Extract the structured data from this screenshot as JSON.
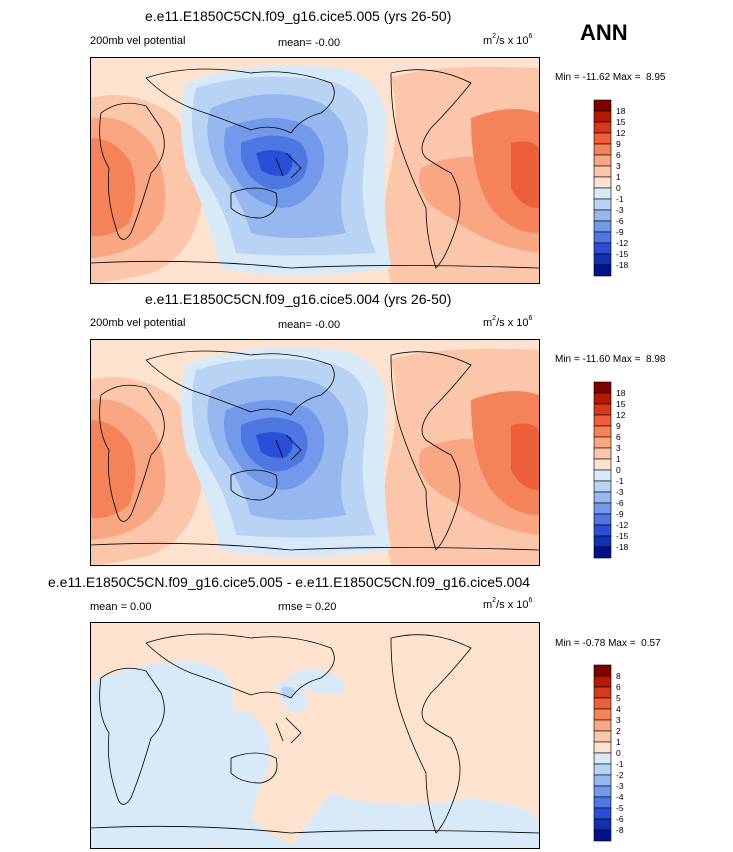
{
  "season": "ANN",
  "panels": [
    {
      "title": "e.e11.E1850C5CN.f09_g16.cice5.005 (yrs 26-50)",
      "left_label": "200mb vel potential",
      "stat_label": "mean=",
      "stat_value": "-0.00",
      "units_prefix": "m",
      "units_exp": "2",
      "units_mid": "/s x 10",
      "units_exp2": "6",
      "min_label": "Min =",
      "min_value": "-11.62",
      "max_label": "Max =",
      "max_value": "8.95",
      "colorbar": {
        "labels": [
          "18",
          "15",
          "12",
          "9",
          "6",
          "3",
          "1",
          "0",
          "-1",
          "-3",
          "-6",
          "-9",
          "-12",
          "-15",
          "-18"
        ]
      }
    },
    {
      "title": "e.e11.E1850C5CN.f09_g16.cice5.004 (yrs 26-50)",
      "left_label": "200mb vel potential",
      "stat_label": "mean=",
      "stat_value": "-0.00",
      "units_prefix": "m",
      "units_exp": "2",
      "units_mid": "/s x 10",
      "units_exp2": "6",
      "min_label": "Min =",
      "min_value": "-11.60",
      "max_label": "Max =",
      "max_value": "8.98",
      "colorbar": {
        "labels": [
          "18",
          "15",
          "12",
          "9",
          "6",
          "3",
          "1",
          "0",
          "-1",
          "-3",
          "-6",
          "-9",
          "-12",
          "-15",
          "-18"
        ]
      }
    },
    {
      "title": "e.e11.E1850C5CN.f09_g16.cice5.005 - e.e11.E1850C5CN.f09_g16.cice5.004",
      "left_label": "mean =   0.00",
      "stat_label": "rmse =",
      "stat_value": "0.20",
      "units_prefix": "m",
      "units_exp": "2",
      "units_mid": "/s x 10",
      "units_exp2": "6",
      "min_label": "Min =",
      "min_value": "-0.78",
      "max_label": "Max =",
      "max_value": "0.57",
      "colorbar": {
        "labels": [
          "8",
          "6",
          "5",
          "4",
          "3",
          "2",
          "1",
          "0",
          "-1",
          "-2",
          "-3",
          "-4",
          "-5",
          "-6",
          "-8"
        ]
      }
    }
  ],
  "colors": {
    "levels": [
      "#7f0000",
      "#b41a00",
      "#d8381a",
      "#ec5f3a",
      "#f5835a",
      "#f9a683",
      "#fcc6aa",
      "#fde3cf",
      "#d8e9f8",
      "#b8d3f3",
      "#96b8ef",
      "#7399ea",
      "#4f77e2",
      "#2a4fd6",
      "#1231b0",
      "#00138a"
    ]
  },
  "chart_data": [
    {
      "type": "heatmap",
      "title": "e.e11.E1850C5CN.f09_g16.cice5.005 (yrs 26-50)",
      "variable": "200mb vel potential",
      "units": "m2/s x 10^6",
      "mean": -0.0,
      "min": -11.62,
      "max": 8.95,
      "contour_levels": [
        -18,
        -15,
        -12,
        -9,
        -6,
        -3,
        -1,
        0,
        1,
        3,
        6,
        9,
        12,
        15,
        18
      ]
    },
    {
      "type": "heatmap",
      "title": "e.e11.E1850C5CN.f09_g16.cice5.004 (yrs 26-50)",
      "variable": "200mb vel potential",
      "units": "m2/s x 10^6",
      "mean": -0.0,
      "min": -11.6,
      "max": 8.98,
      "contour_levels": [
        -18,
        -15,
        -12,
        -9,
        -6,
        -3,
        -1,
        0,
        1,
        3,
        6,
        9,
        12,
        15,
        18
      ]
    },
    {
      "type": "heatmap",
      "title": "e.e11.E1850C5CN.f09_g16.cice5.005 - e.e11.E1850C5CN.f09_g16.cice5.004",
      "units": "m2/s x 10^6",
      "mean": 0.0,
      "rmse": 0.2,
      "min": -0.78,
      "max": 0.57,
      "contour_levels": [
        -8,
        -6,
        -5,
        -4,
        -3,
        -2,
        -1,
        0,
        1,
        2,
        3,
        4,
        5,
        6,
        8
      ]
    }
  ]
}
